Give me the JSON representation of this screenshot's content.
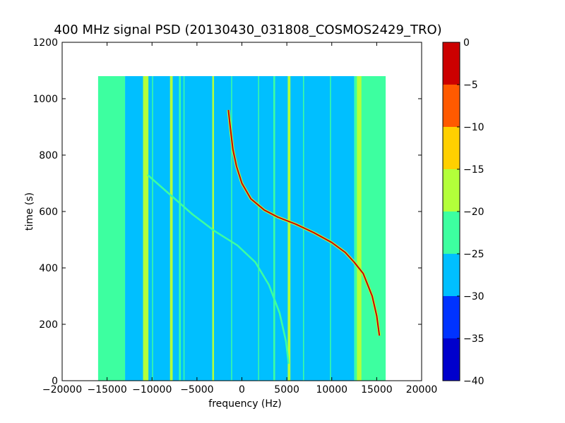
{
  "chart_data": {
    "type": "heatmap",
    "title": "400 MHz signal PSD (20130430_031808_COSMOS2429_TRO)",
    "xlabel": "frequency (Hz)",
    "ylabel": "time (s)",
    "xlim": [
      -20000,
      20000
    ],
    "ylim": [
      0,
      1200
    ],
    "x_ticks": [
      -20000,
      -15000,
      -10000,
      -5000,
      0,
      5000,
      10000,
      15000,
      20000
    ],
    "y_ticks": [
      0,
      200,
      400,
      600,
      800,
      1000,
      1200
    ],
    "x_tick_labels": [
      "−20000",
      "−15000",
      "−10000",
      "−5000",
      "0",
      "5000",
      "10000",
      "15000",
      "20000"
    ],
    "y_tick_labels": [
      "0",
      "200",
      "400",
      "600",
      "800",
      "1000",
      "1200"
    ],
    "data_extent": {
      "x": [
        -16000,
        16000
      ],
      "y": [
        0,
        1080
      ]
    },
    "colorbar": {
      "levels": [
        -40,
        -35,
        -30,
        -25,
        -20,
        -15,
        -10,
        -5,
        0
      ],
      "tick_labels": [
        "−40",
        "−35",
        "−30",
        "−25",
        "−20",
        "−15",
        "−10",
        "−5",
        "0"
      ],
      "colors": [
        "#0000cc",
        "#0033ff",
        "#00bfff",
        "#3dffa0",
        "#b3ff3a",
        "#ffd000",
        "#ff5a00",
        "#cc0000"
      ]
    },
    "background_bands": [
      {
        "x": [
          -16000,
          -13000
        ],
        "level": -22.5
      },
      {
        "x": [
          -13000,
          -10500
        ],
        "level": -27.5
      },
      {
        "x": [
          -10500,
          12500
        ],
        "level": -27.5
      },
      {
        "x": [
          12500,
          16000
        ],
        "level": -22.5
      }
    ],
    "vertical_lines": [
      {
        "x": [
          -11000,
          -10400
        ],
        "level": -17.5
      },
      {
        "x": [
          -10000,
          -9900
        ],
        "level": -22.5
      },
      {
        "x": [
          -8000,
          -7700
        ],
        "level": -17.5
      },
      {
        "x": [
          -7000,
          -6800
        ],
        "level": -22.5
      },
      {
        "x": [
          -6500,
          -6400
        ],
        "level": -22.5
      },
      {
        "x": [
          -3300,
          -3100
        ],
        "level": -17.5
      },
      {
        "x": [
          -1200,
          -1100
        ],
        "level": -22.5
      },
      {
        "x": [
          1800,
          1900
        ],
        "level": -22.5
      },
      {
        "x": [
          3500,
          3700
        ],
        "level": -22.5
      },
      {
        "x": [
          5100,
          5400
        ],
        "level": -17.5
      },
      {
        "x": [
          6800,
          6900
        ],
        "level": -22.5
      },
      {
        "x": [
          9800,
          9900
        ],
        "level": -22.5
      },
      {
        "x": [
          12800,
          13300
        ],
        "level": -17.5
      }
    ],
    "series": [
      {
        "level": -2.5,
        "points": [
          [
            -1500,
            960
          ],
          [
            -1300,
            900
          ],
          [
            -1000,
            820
          ],
          [
            -600,
            760
          ],
          [
            0,
            700
          ],
          [
            1000,
            645
          ],
          [
            2500,
            605
          ],
          [
            4000,
            580
          ],
          [
            6000,
            555
          ],
          [
            8000,
            525
          ],
          [
            10000,
            490
          ],
          [
            11500,
            455
          ],
          [
            12500,
            420
          ],
          [
            13500,
            380
          ],
          [
            14500,
            300
          ],
          [
            15000,
            230
          ],
          [
            15300,
            160
          ]
        ]
      },
      {
        "level": -22.5,
        "points": [
          [
            -10500,
            730
          ],
          [
            -8000,
            660
          ],
          [
            -5500,
            590
          ],
          [
            -3000,
            530
          ],
          [
            -500,
            480
          ],
          [
            1500,
            420
          ],
          [
            3000,
            340
          ],
          [
            4200,
            240
          ],
          [
            4900,
            140
          ],
          [
            5200,
            60
          ]
        ]
      }
    ]
  }
}
